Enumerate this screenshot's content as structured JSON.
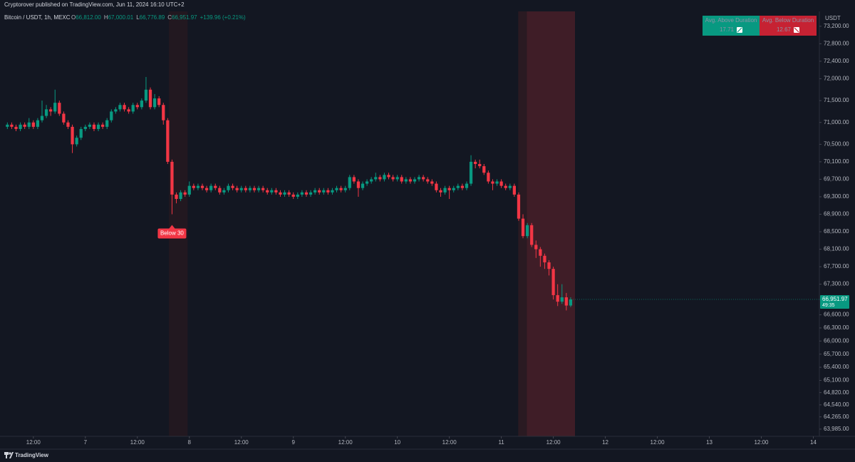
{
  "header": "Cryptorover published on TradingView.com, Jun 11, 2024 16:10 UTC+2",
  "footer": "TradingView",
  "chart_data": {
    "type": "candlestick",
    "symbol": "Bitcoin / USDT, 1h, MEXC",
    "legend_ohlc": [
      {
        "key": "O",
        "value": "66,812.00"
      },
      {
        "key": "H",
        "value": "67,000.01"
      },
      {
        "key": "L",
        "value": "66,776.89"
      },
      {
        "key": "C",
        "value": "66,951.97"
      }
    ],
    "legend_change": "+139.96 (+0.21%)",
    "currency": "USDT",
    "up_color": "#089981",
    "down_color": "#f23645",
    "x": [
      -18,
      -17,
      -16,
      -15,
      -14,
      -13,
      -12,
      -11,
      -10,
      -9,
      -8,
      -7,
      -6,
      -5,
      -4,
      -3,
      -2,
      -1,
      0,
      1,
      2,
      3,
      4,
      5,
      6,
      7,
      8,
      9,
      10,
      11,
      12,
      13,
      14,
      15,
      16,
      17,
      18,
      19,
      20,
      21,
      22,
      23,
      24,
      25,
      26,
      27,
      28,
      29,
      30,
      31,
      32,
      33,
      34,
      35,
      36,
      37,
      38,
      39,
      40,
      41,
      42,
      43,
      44,
      45,
      46,
      47,
      48,
      49,
      50,
      51,
      52,
      53,
      54,
      55,
      56,
      57,
      58,
      59,
      60,
      61,
      62,
      63,
      64,
      65,
      66,
      67,
      68,
      69,
      70,
      71,
      72,
      73,
      74,
      75,
      76,
      77,
      78,
      79,
      80,
      81,
      82,
      83,
      84,
      85,
      86,
      87,
      88,
      89,
      90,
      91,
      92,
      93,
      94,
      95,
      96,
      97,
      98,
      99,
      100,
      101,
      102,
      103,
      104,
      105,
      106,
      107,
      108,
      109,
      110,
      111,
      112
    ],
    "candles": [
      [
        70900,
        71000,
        70850,
        70950
      ],
      [
        70950,
        71000,
        70850,
        70900
      ],
      [
        70900,
        70950,
        70800,
        70850
      ],
      [
        70850,
        71000,
        70800,
        70950
      ],
      [
        70950,
        71000,
        70850,
        70900
      ],
      [
        70900,
        71100,
        70850,
        71000
      ],
      [
        71000,
        71050,
        70850,
        70900
      ],
      [
        70900,
        71100,
        70850,
        71050
      ],
      [
        71050,
        71500,
        71000,
        71150
      ],
      [
        71150,
        71400,
        71100,
        71300
      ],
      [
        71300,
        71350,
        71150,
        71250
      ],
      [
        71250,
        71750,
        71200,
        71450
      ],
      [
        71450,
        71500,
        71150,
        71200
      ],
      [
        71200,
        71250,
        70950,
        71000
      ],
      [
        71000,
        71050,
        70850,
        70900
      ],
      [
        70900,
        70950,
        70300,
        70500
      ],
      [
        70500,
        70700,
        70450,
        70650
      ],
      [
        70650,
        70900,
        70600,
        70850
      ],
      [
        70850,
        70950,
        70800,
        70900
      ],
      [
        70900,
        71000,
        70850,
        70950
      ],
      [
        70950,
        71000,
        70800,
        70850
      ],
      [
        70850,
        71000,
        70800,
        70950
      ],
      [
        70950,
        71000,
        70850,
        70900
      ],
      [
        70900,
        71100,
        70850,
        71050
      ],
      [
        71050,
        71300,
        71000,
        71250
      ],
      [
        71250,
        71350,
        71200,
        71300
      ],
      [
        71300,
        71450,
        71250,
        71400
      ],
      [
        71400,
        71450,
        71250,
        71300
      ],
      [
        71300,
        71350,
        71200,
        71250
      ],
      [
        71250,
        71450,
        71200,
        71400
      ],
      [
        71400,
        71450,
        71300,
        71350
      ],
      [
        71350,
        71550,
        71300,
        71500
      ],
      [
        71500,
        72040,
        71450,
        71750
      ],
      [
        71750,
        71800,
        71300,
        71350
      ],
      [
        71350,
        71650,
        71300,
        71550
      ],
      [
        71550,
        71600,
        71350,
        71400
      ],
      [
        71400,
        71450,
        70950,
        71050
      ],
      [
        71050,
        71100,
        70050,
        70100
      ],
      [
        70100,
        70150,
        68900,
        69350
      ],
      [
        69350,
        69400,
        69150,
        69250
      ],
      [
        69250,
        69450,
        69200,
        69400
      ],
      [
        69400,
        69450,
        69300,
        69350
      ],
      [
        69350,
        69650,
        69300,
        69550
      ],
      [
        69550,
        69600,
        69450,
        69500
      ],
      [
        69500,
        69600,
        69450,
        69550
      ],
      [
        69550,
        69600,
        69450,
        69500
      ],
      [
        69500,
        69550,
        69400,
        69450
      ],
      [
        69450,
        69600,
        69400,
        69550
      ],
      [
        69550,
        69600,
        69450,
        69500
      ],
      [
        69500,
        69550,
        69350,
        69400
      ],
      [
        69400,
        69500,
        69350,
        69450
      ],
      [
        69450,
        69600,
        69400,
        69550
      ],
      [
        69550,
        69600,
        69450,
        69500
      ],
      [
        69500,
        69550,
        69400,
        69450
      ],
      [
        69450,
        69550,
        69400,
        69500
      ],
      [
        69500,
        69550,
        69400,
        69450
      ],
      [
        69450,
        69550,
        69400,
        69500
      ],
      [
        69500,
        69550,
        69400,
        69450
      ],
      [
        69450,
        69550,
        69400,
        69500
      ],
      [
        69500,
        69550,
        69400,
        69450
      ],
      [
        69450,
        69500,
        69350,
        69400
      ],
      [
        69400,
        69500,
        69350,
        69450
      ],
      [
        69450,
        69500,
        69350,
        69400
      ],
      [
        69400,
        69450,
        69300,
        69350
      ],
      [
        69350,
        69450,
        69300,
        69400
      ],
      [
        69400,
        69450,
        69300,
        69350
      ],
      [
        69350,
        69400,
        69250,
        69300
      ],
      [
        69300,
        69400,
        69250,
        69350
      ],
      [
        69350,
        69450,
        69300,
        69400
      ],
      [
        69400,
        69450,
        69300,
        69350
      ],
      [
        69350,
        69450,
        69300,
        69400
      ],
      [
        69400,
        69500,
        69350,
        69450
      ],
      [
        69450,
        69500,
        69350,
        69400
      ],
      [
        69400,
        69500,
        69350,
        69450
      ],
      [
        69450,
        69500,
        69350,
        69400
      ],
      [
        69400,
        69500,
        69350,
        69450
      ],
      [
        69450,
        69550,
        69400,
        69500
      ],
      [
        69500,
        69550,
        69400,
        69450
      ],
      [
        69450,
        69550,
        69400,
        69500
      ],
      [
        69500,
        69800,
        69450,
        69750
      ],
      [
        69750,
        69800,
        69600,
        69650
      ],
      [
        69650,
        69700,
        69300,
        69500
      ],
      [
        69500,
        69650,
        69450,
        69600
      ],
      [
        69600,
        69700,
        69550,
        69650
      ],
      [
        69650,
        69750,
        69600,
        69700
      ],
      [
        69700,
        69850,
        69650,
        69750
      ],
      [
        69750,
        69800,
        69650,
        69700
      ],
      [
        69700,
        69850,
        69650,
        69800
      ],
      [
        69800,
        69850,
        69700,
        69750
      ],
      [
        69750,
        69800,
        69650,
        69700
      ],
      [
        69700,
        69800,
        69650,
        69750
      ],
      [
        69750,
        69800,
        69600,
        69650
      ],
      [
        69650,
        69750,
        69600,
        69700
      ],
      [
        69700,
        69750,
        69600,
        69650
      ],
      [
        69650,
        69750,
        69600,
        69700
      ],
      [
        69700,
        69800,
        69650,
        69750
      ],
      [
        69750,
        69800,
        69650,
        69700
      ],
      [
        69700,
        69750,
        69600,
        69650
      ],
      [
        69650,
        69700,
        69550,
        69600
      ],
      [
        69600,
        69650,
        69400,
        69450
      ],
      [
        69450,
        69500,
        69300,
        69400
      ],
      [
        69400,
        69550,
        69350,
        69500
      ],
      [
        69500,
        69550,
        69250,
        69450
      ],
      [
        69450,
        69550,
        69400,
        69500
      ],
      [
        69500,
        69600,
        69450,
        69550
      ],
      [
        69550,
        69600,
        69450,
        69500
      ],
      [
        69500,
        69650,
        69450,
        69600
      ],
      [
        69600,
        70250,
        69550,
        70100
      ],
      [
        70100,
        70150,
        69950,
        70050
      ],
      [
        70050,
        70150,
        69950,
        70000
      ],
      [
        70000,
        70050,
        69800,
        69850
      ],
      [
        69850,
        69900,
        69600,
        69650
      ],
      [
        69650,
        69700,
        69450,
        69600
      ],
      [
        69600,
        69700,
        69550,
        69650
      ],
      [
        69650,
        69700,
        69500,
        69550
      ],
      [
        69550,
        69600,
        69450,
        69500
      ],
      [
        69500,
        69600,
        69450,
        69550
      ],
      [
        69550,
        69600,
        69300,
        69350
      ],
      [
        69350,
        69400,
        68750,
        68800
      ],
      [
        68800,
        68900,
        68350,
        68400
      ],
      [
        68400,
        68700,
        68350,
        68650
      ],
      [
        68650,
        68700,
        68150,
        68200
      ],
      [
        68200,
        68300,
        67900,
        68100
      ],
      [
        68100,
        68150,
        67700,
        67950
      ],
      [
        67950,
        68000,
        67650,
        67800
      ],
      [
        67800,
        67850,
        67500,
        67650
      ],
      [
        67650,
        67700,
        66950,
        67050
      ],
      [
        67050,
        67300,
        66800,
        66900
      ],
      [
        66900,
        67300,
        66850,
        67000
      ],
      [
        67000,
        67100,
        66700,
        66812
      ],
      [
        66812,
        67000.01,
        66776.89,
        66951.97
      ]
    ],
    "bands": [
      {
        "x0": 19.3,
        "x1": 23.6,
        "color": "#221820"
      },
      {
        "x0": 99.9,
        "x1": 101.9,
        "color": "#2a1a22"
      },
      {
        "x0": 101.9,
        "x1": 113,
        "color": "#3f1d27"
      }
    ],
    "annotation": {
      "text": "Below 30",
      "x": 20,
      "color": "#f23645"
    },
    "last_price": {
      "value": 66951.97,
      "label": "66,951.97"
    },
    "countdown": "49:35",
    "stats_table": {
      "headers": [
        "Avg. Above Duration",
        "Avg. Below Duration"
      ],
      "values": [
        "17.71",
        "12.67"
      ],
      "colors": [
        "#089981",
        "#c62233"
      ]
    },
    "xlim": [
      -19.7,
      169.4
    ],
    "xticks": [
      {
        "value": -12,
        "label": "12:00"
      },
      {
        "value": 0,
        "label": "7"
      },
      {
        "value": 12,
        "label": "12:00"
      },
      {
        "value": 24,
        "label": "8"
      },
      {
        "value": 36,
        "label": "12:00"
      },
      {
        "value": 48,
        "label": "9"
      },
      {
        "value": 60,
        "label": "12:00"
      },
      {
        "value": 72,
        "label": "10"
      },
      {
        "value": 84,
        "label": "12:00"
      },
      {
        "value": 96,
        "label": "11"
      },
      {
        "value": 108,
        "label": "12:00"
      },
      {
        "value": 120,
        "label": "12"
      },
      {
        "value": 132,
        "label": "12:00"
      },
      {
        "value": 144,
        "label": "13"
      },
      {
        "value": 156,
        "label": "12:00"
      },
      {
        "value": 168,
        "label": "14"
      }
    ],
    "ylim": [
      63820,
      73540
    ],
    "yticks": [
      {
        "value": 73200,
        "label": "73,200.00"
      },
      {
        "value": 72800,
        "label": "72,800.00"
      },
      {
        "value": 72400,
        "label": "72,400.00"
      },
      {
        "value": 72000,
        "label": "72,000.00"
      },
      {
        "value": 71500,
        "label": "71,500.00"
      },
      {
        "value": 71000,
        "label": "71,000.00"
      },
      {
        "value": 70500,
        "label": "70,500.00"
      },
      {
        "value": 70100,
        "label": "70,100.00"
      },
      {
        "value": 69700,
        "label": "69,700.00"
      },
      {
        "value": 69300,
        "label": "69,300.00"
      },
      {
        "value": 68900,
        "label": "68,900.00"
      },
      {
        "value": 68500,
        "label": "68,500.00"
      },
      {
        "value": 68100,
        "label": "68,100.00"
      },
      {
        "value": 67700,
        "label": "67,700.00"
      },
      {
        "value": 67300,
        "label": "67,300.00"
      },
      {
        "value": 66600,
        "label": "66,600.00"
      },
      {
        "value": 66300,
        "label": "66,300.00"
      },
      {
        "value": 66000,
        "label": "66,000.00"
      },
      {
        "value": 65700,
        "label": "65,700.00"
      },
      {
        "value": 65400,
        "label": "65,400.00"
      },
      {
        "value": 65100,
        "label": "65,100.00"
      },
      {
        "value": 64820,
        "label": "64,820.00"
      },
      {
        "value": 64540,
        "label": "64,540.00"
      },
      {
        "value": 64265,
        "label": "64,265.00"
      },
      {
        "value": 63985,
        "label": "63,985.00"
      }
    ]
  }
}
